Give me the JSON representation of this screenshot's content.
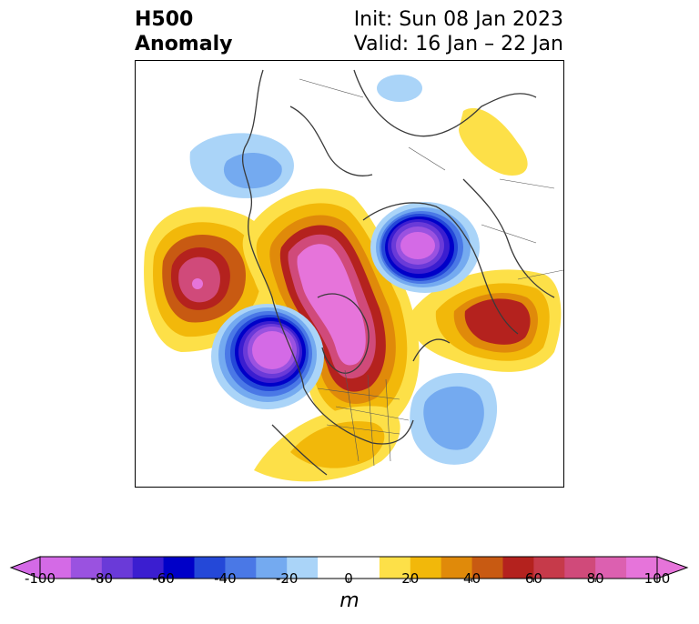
{
  "title": {
    "left_line1": "H500",
    "left_line2": "Anomaly",
    "right_line1": "Init: Sun 08 Jan 2023",
    "right_line2": "Valid: 16 Jan – 22 Jan"
  },
  "colorbar": {
    "label": "m",
    "ticks": [
      "-100",
      "-80",
      "-60",
      "-40",
      "-20",
      "0",
      "20",
      "40",
      "60",
      "80",
      "100"
    ],
    "colors": [
      "#d46ae6",
      "#9a52e0",
      "#6a3ad8",
      "#3b1ed0",
      "#0000c8",
      "#2448d8",
      "#4a78e6",
      "#74aaf0",
      "#aad4f8",
      "#ffffff",
      "#ffffff",
      "#fde048",
      "#f2b80a",
      "#e08a0a",
      "#c85a12",
      "#b4221e",
      "#c63a4a",
      "#d04a7a",
      "#dc60b0",
      "#e674da"
    ],
    "min_arrow_color": "#d46ae6",
    "max_arrow_color": "#e674da"
  },
  "map": {
    "description_hidden": "",
    "features": [
      "contour-fill",
      "coastlines",
      "borders"
    ]
  }
}
